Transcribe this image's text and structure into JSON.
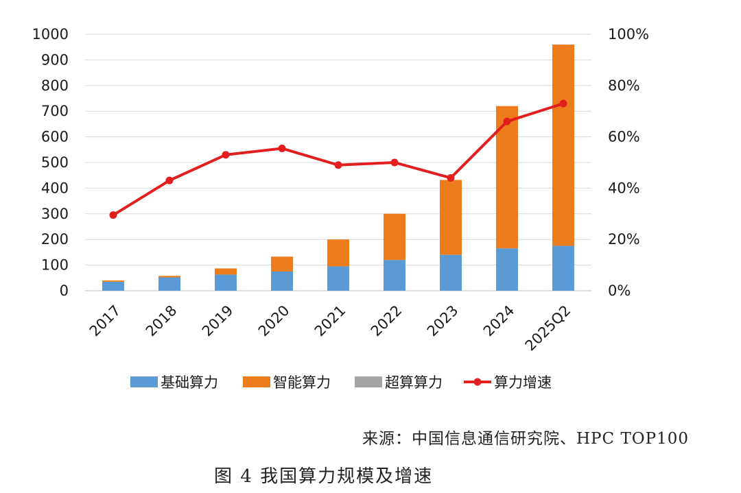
{
  "chart_data": {
    "type": "bar",
    "stacked": true,
    "categories": [
      "2017",
      "2018",
      "2019",
      "2020",
      "2021",
      "2022",
      "2023",
      "2024",
      "2025Q2"
    ],
    "series": [
      {
        "name": "基础算力",
        "kind": "bar",
        "axis": "left",
        "color": "#5b9bd5",
        "values": [
          35,
          52,
          63,
          75,
          95,
          120,
          140,
          165,
          175
        ]
      },
      {
        "name": "智能算力",
        "kind": "bar",
        "axis": "left",
        "color": "#ed7d1c",
        "values": [
          5,
          6,
          24,
          58,
          105,
          180,
          292,
          555,
          785
        ]
      },
      {
        "name": "超算算力",
        "kind": "bar",
        "axis": "left",
        "color": "#a5a5a5",
        "values": [
          0,
          0,
          0,
          0,
          0,
          0,
          0,
          0,
          0
        ]
      },
      {
        "name": "算力增速",
        "kind": "line",
        "axis": "right",
        "color": "#e21e1e",
        "values": [
          29.5,
          43,
          53,
          55.5,
          49,
          50,
          44,
          66,
          73
        ]
      }
    ],
    "yleft": {
      "min": 0,
      "max": 1000,
      "ticks": [
        0,
        100,
        200,
        300,
        400,
        500,
        600,
        700,
        800,
        900,
        1000
      ]
    },
    "yright": {
      "min": 0,
      "max": 100,
      "ticks": [
        "0%",
        "20%",
        "40%",
        "60%",
        "80%",
        "100%"
      ],
      "tick_values": [
        0,
        20,
        40,
        60,
        80,
        100
      ]
    },
    "grid": true,
    "legend": "bottom"
  },
  "source": "来源：中国信息通信研究院、HPC TOP100",
  "caption": "图 4 我国算力规模及增速"
}
